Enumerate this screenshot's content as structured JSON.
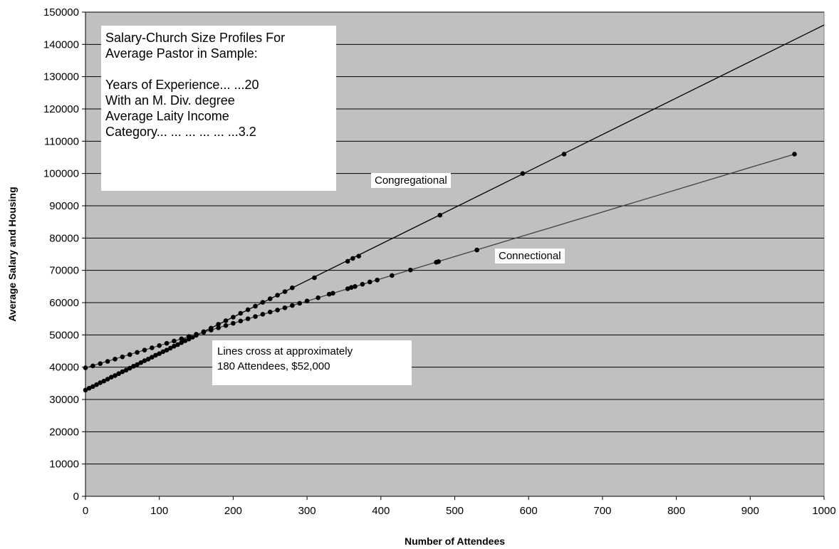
{
  "chart_data": {
    "type": "scatter",
    "title": "",
    "xlabel": "Number of Attendees",
    "ylabel": "Average Salary and Housing",
    "xlim": [
      0,
      1000
    ],
    "ylim": [
      0,
      150000
    ],
    "x_ticks": [
      "0",
      "100",
      "200",
      "300",
      "400",
      "500",
      "600",
      "700",
      "800",
      "900",
      "1000"
    ],
    "y_ticks": [
      "0",
      "10000",
      "20000",
      "30000",
      "40000",
      "50000",
      "60000",
      "70000",
      "80000",
      "90000",
      "100000",
      "110000",
      "120000",
      "130000",
      "140000",
      "150000"
    ],
    "grid": "horizontal",
    "plot_background": "#c0c0c0",
    "series": [
      {
        "name": "Congregational",
        "line": {
          "x": [
            0,
            1000
          ],
          "y": [
            32900,
            146000
          ]
        },
        "points": {
          "x": [
            0,
            5,
            10,
            15,
            20,
            25,
            30,
            35,
            40,
            45,
            50,
            55,
            60,
            65,
            70,
            75,
            80,
            85,
            90,
            95,
            100,
            105,
            110,
            115,
            120,
            125,
            130,
            135,
            140,
            145,
            150,
            160,
            170,
            180,
            190,
            200,
            210,
            220,
            230,
            240,
            250,
            260,
            270,
            280,
            310,
            355,
            362,
            370,
            480,
            592,
            648
          ],
          "y": [
            32900,
            33500,
            34000,
            34600,
            35200,
            35700,
            36300,
            36900,
            37400,
            38000,
            38600,
            39100,
            39700,
            40300,
            40800,
            41400,
            42000,
            42500,
            43100,
            43700,
            44200,
            44800,
            45300,
            45900,
            46500,
            47000,
            47600,
            48200,
            48700,
            49300,
            49900,
            51000,
            52100,
            53300,
            54400,
            55500,
            56700,
            57800,
            58900,
            60100,
            61200,
            62300,
            63400,
            64600,
            67700,
            72800,
            73700,
            74400,
            87100,
            100000,
            106000
          ]
        }
      },
      {
        "name": "Connectional",
        "line": {
          "x": [
            0,
            960
          ],
          "y": [
            39800,
            106000
          ]
        },
        "points": {
          "x": [
            0,
            10,
            20,
            30,
            40,
            50,
            60,
            70,
            80,
            90,
            100,
            110,
            120,
            130,
            140,
            150,
            160,
            170,
            180,
            190,
            200,
            210,
            220,
            230,
            240,
            250,
            260,
            270,
            280,
            290,
            300,
            315,
            330,
            335,
            355,
            360,
            365,
            375,
            385,
            395,
            415,
            440,
            475,
            478,
            530,
            960
          ],
          "y": [
            39800,
            40400,
            41100,
            41800,
            42500,
            43200,
            43900,
            44600,
            45300,
            46000,
            46700,
            47400,
            48100,
            48800,
            49500,
            50200,
            50800,
            51500,
            52200,
            52900,
            53600,
            54300,
            55000,
            55700,
            56400,
            57100,
            57700,
            58400,
            59100,
            59800,
            60500,
            61500,
            62600,
            62900,
            64300,
            64700,
            65000,
            65700,
            66400,
            67000,
            68400,
            70100,
            72500,
            72700,
            76300,
            106000
          ]
        }
      }
    ],
    "annotations": {
      "info_lines": [
        "Salary-Church Size Profiles For",
        "Average Pastor in Sample:",
        "Years of Experience... ...20",
        "With an M. Div. degree",
        "Average Laity Income",
        "Category... ... ... ... ... ...3.2"
      ],
      "cross_lines": [
        "Lines cross at approximately",
        "180 Attendees, $52,000"
      ],
      "congregational_label": "Congregational",
      "connectional_label": "Connectional"
    }
  },
  "colors": {
    "plot_background": "#c0c0c0",
    "gridline": "#000000",
    "congregational": "#000000",
    "connectional": "#404040"
  }
}
